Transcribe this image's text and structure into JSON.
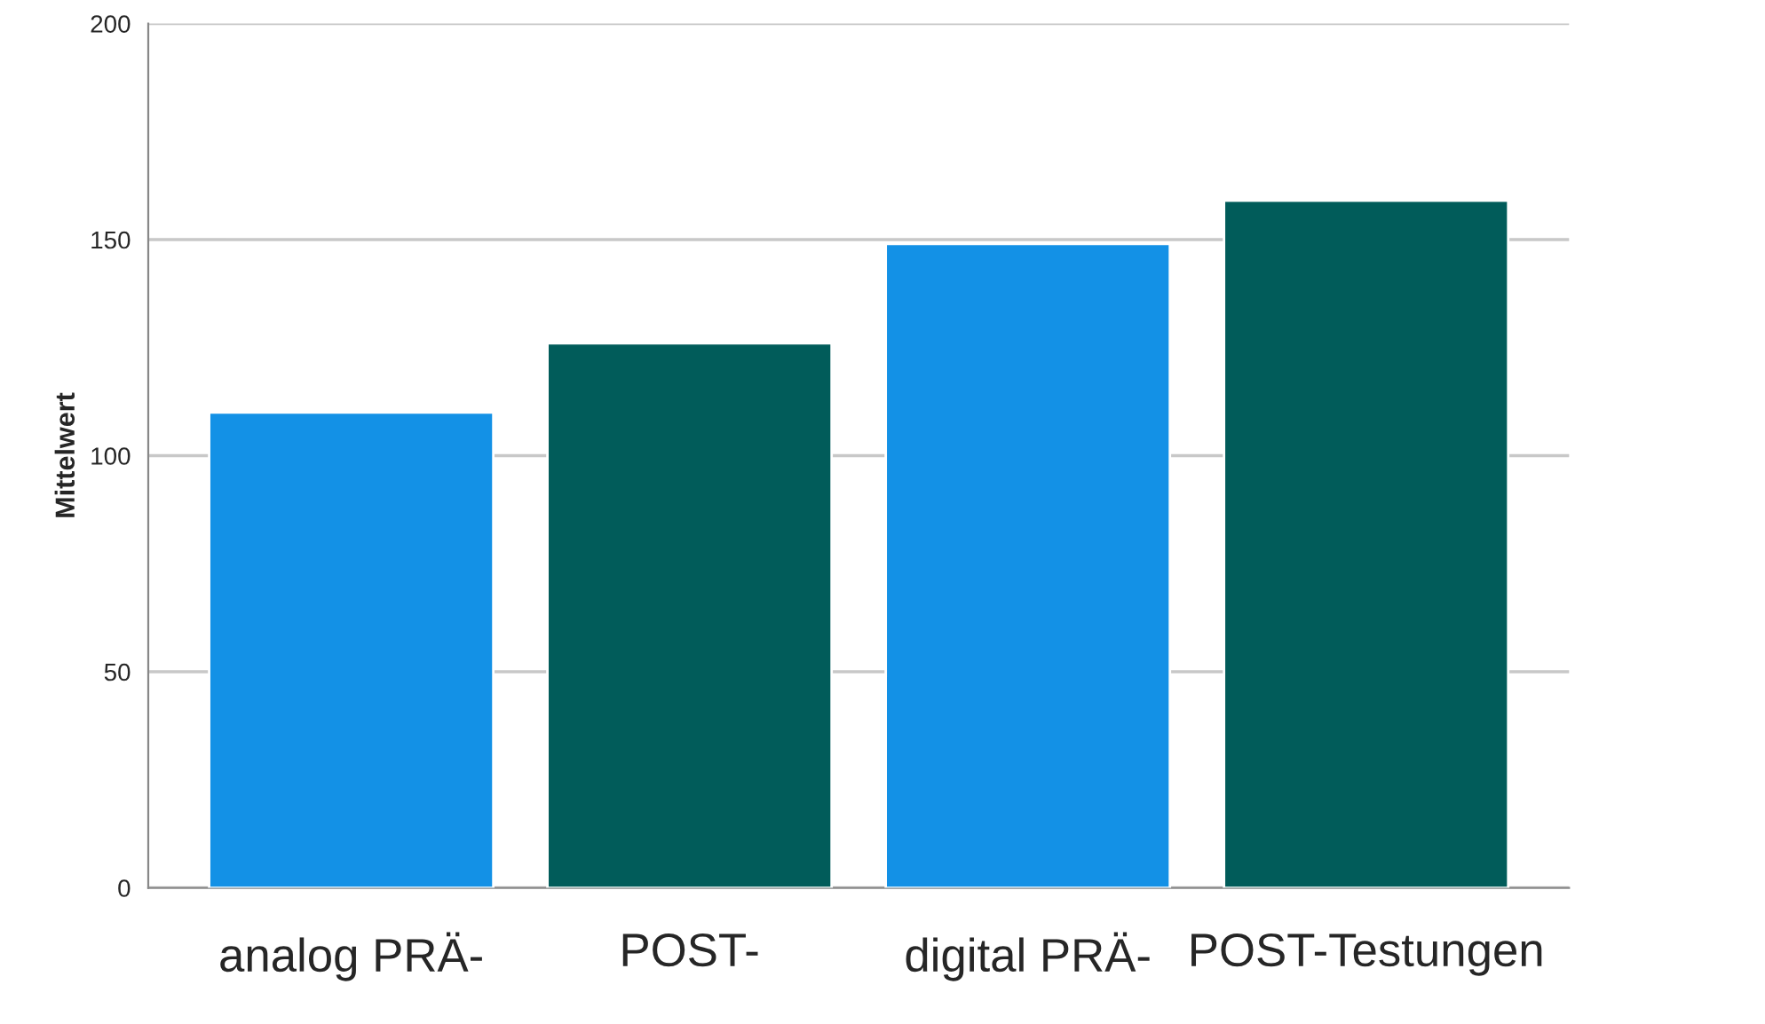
{
  "chart_data": {
    "type": "bar",
    "ylabel": "Mittelwert",
    "categories": [
      "analog PRÄ-",
      "POST-",
      "digital PRÄ-",
      "POST-Testungen"
    ],
    "values": [
      110,
      126,
      149,
      159
    ],
    "colors": [
      "#1391e6",
      "#015c5a",
      "#1391e6",
      "#015c5a"
    ],
    "ylim": [
      0,
      200
    ],
    "yticks": [
      0,
      50,
      100,
      150,
      200
    ],
    "grid": "y"
  }
}
